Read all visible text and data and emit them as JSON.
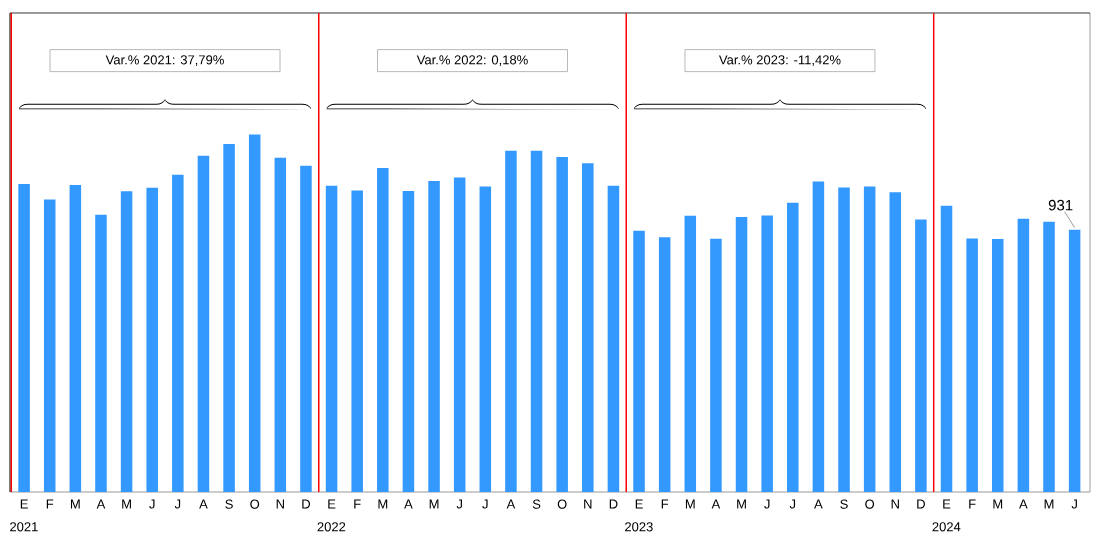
{
  "chart_data": {
    "type": "bar",
    "categories": [
      "E",
      "F",
      "M",
      "A",
      "M",
      "J",
      "J",
      "A",
      "S",
      "O",
      "N",
      "D",
      "E",
      "F",
      "M",
      "A",
      "M",
      "J",
      "J",
      "A",
      "S",
      "O",
      "N",
      "D",
      "E",
      "F",
      "M",
      "A",
      "M",
      "J",
      "J",
      "A",
      "S",
      "O",
      "N",
      "D",
      "E",
      "F",
      "M",
      "A",
      "M",
      "J"
    ],
    "values": [
      1093,
      1038,
      1090,
      984,
      1067,
      1080,
      1126,
      1193,
      1235,
      1269,
      1186,
      1158,
      1087,
      1070,
      1150,
      1068,
      1104,
      1116,
      1084,
      1211,
      1211,
      1189,
      1167,
      1087,
      927,
      904,
      980,
      899,
      976,
      981,
      1027,
      1102,
      1081,
      1084,
      1064,
      967,
      1016,
      900,
      898,
      970,
      959,
      931
    ],
    "value_labels": [
      null,
      null,
      null,
      null,
      null,
      null,
      null,
      null,
      null,
      null,
      null,
      null,
      null,
      null,
      null,
      null,
      null,
      null,
      null,
      null,
      null,
      null,
      null,
      null,
      null,
      null,
      null,
      null,
      null,
      null,
      null,
      null,
      null,
      null,
      null,
      null,
      null,
      null,
      null,
      null,
      null,
      "931"
    ],
    "color": "#3399ff",
    "ylim": [
      0,
      1700
    ],
    "tick_labels": "x",
    "grid": false,
    "annotations": [
      "Var.% 2021:  37,79%",
      "Var.% 2022: 0,18%",
      "Var.% 2023: -11,42%",
      "2021",
      "2022",
      "2023",
      "2024"
    ]
  }
}
